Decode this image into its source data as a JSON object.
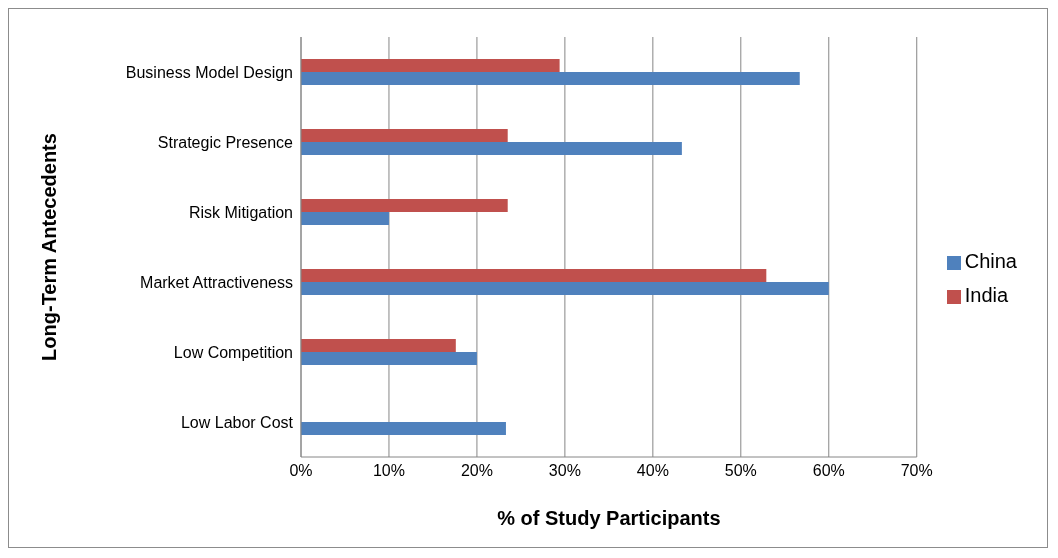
{
  "chart_data": {
    "type": "bar",
    "orientation": "horizontal",
    "xlabel": "% of Study Participants",
    "ylabel": "Long-Term Antecedents",
    "categories": [
      "Business Model Design",
      "Strategic Presence",
      "Risk Mitigation",
      "Market Attractiveness",
      "Low Competition",
      "Low Labor Cost"
    ],
    "series": [
      {
        "name": "India",
        "color": "#c0504d",
        "values": [
          29.4,
          23.5,
          23.5,
          52.9,
          17.6,
          null
        ]
      },
      {
        "name": "China",
        "color": "#4f81bd",
        "values": [
          56.7,
          43.3,
          10,
          60,
          20,
          23.3
        ]
      }
    ],
    "xlim": [
      0,
      70
    ],
    "xticks": [
      {
        "value": 0,
        "label": "0%"
      },
      {
        "value": 10,
        "label": "10%"
      },
      {
        "value": 20,
        "label": "20%"
      },
      {
        "value": 30,
        "label": "30%"
      },
      {
        "value": 40,
        "label": "40%"
      },
      {
        "value": 50,
        "label": "50%"
      },
      {
        "value": 60,
        "label": "60%"
      },
      {
        "value": 70,
        "label": "70%"
      }
    ],
    "grid": "x",
    "legend": "right"
  }
}
